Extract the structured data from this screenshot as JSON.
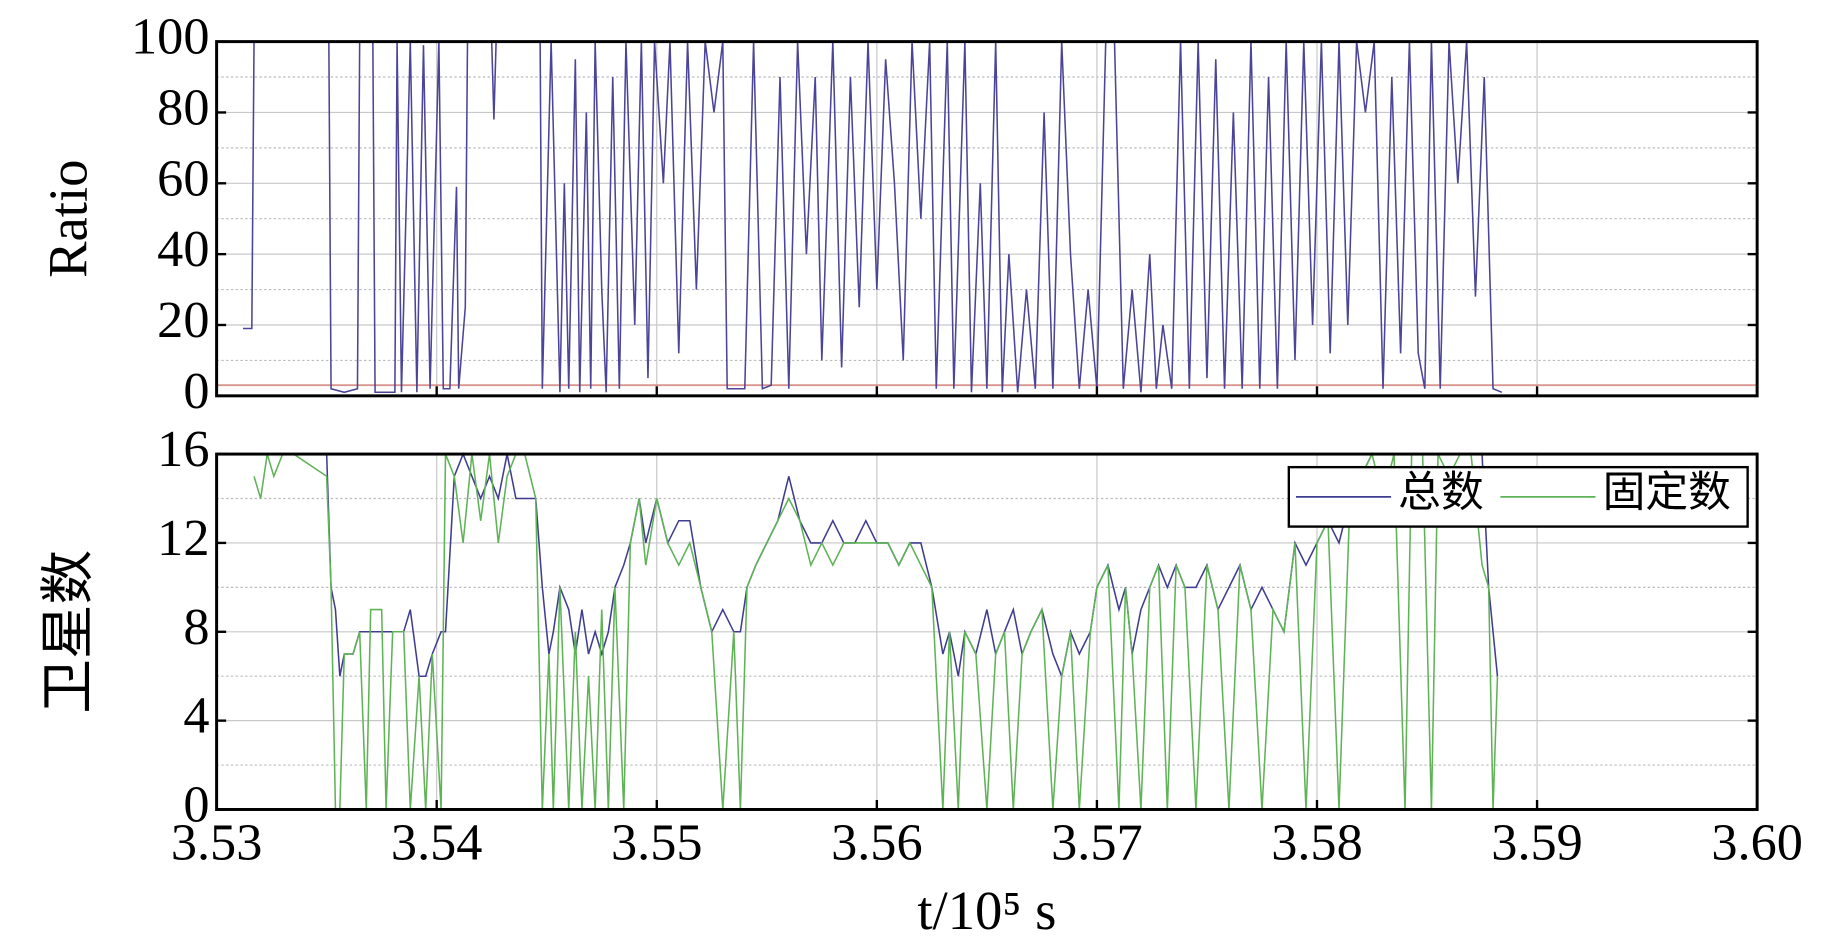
{
  "chart_data": [
    {
      "type": "line",
      "ylabel": "Ratio",
      "xlim": [
        3.53,
        3.6
      ],
      "xticks": [
        3.53,
        3.54,
        3.55,
        3.56,
        3.57,
        3.58,
        3.59,
        3.6
      ],
      "xtick_labels": false,
      "ylim": [
        0,
        100
      ],
      "yticks": [
        0,
        20,
        40,
        60,
        80,
        100
      ],
      "minor_yticks": [
        10,
        30,
        50,
        70,
        90
      ],
      "grid": true,
      "reference_line": {
        "value": 3,
        "color": "#d9958f"
      },
      "x": [
        3.5312,
        3.5316,
        3.5317,
        3.5351,
        3.5352,
        3.5358,
        3.5364,
        3.5365,
        3.5371,
        3.5372,
        3.5381,
        3.5382,
        3.5384,
        3.5388,
        3.5391,
        3.5394,
        3.5397,
        3.5401,
        3.5403,
        3.5406,
        3.5409,
        3.541,
        3.5413,
        3.5414,
        3.5425,
        3.5426,
        3.5427,
        3.5447,
        3.5448,
        3.5452,
        3.5456,
        3.5458,
        3.546,
        3.5463,
        3.5465,
        3.5468,
        3.547,
        3.5472,
        3.5475,
        3.5477,
        3.548,
        3.5483,
        3.5486,
        3.549,
        3.5493,
        3.5496,
        3.5499,
        3.5503,
        3.5506,
        3.551,
        3.5514,
        3.5518,
        3.5522,
        3.5526,
        3.553,
        3.5532,
        3.554,
        3.5544,
        3.5548,
        3.5552,
        3.5556,
        3.556,
        3.5564,
        3.5568,
        3.5572,
        3.5575,
        3.558,
        3.5584,
        3.5588,
        3.5592,
        3.5596,
        3.56,
        3.5604,
        3.5608,
        3.5612,
        3.5616,
        3.562,
        3.5624,
        3.5627,
        3.5632,
        3.5635,
        3.564,
        3.5643,
        3.5647,
        3.565,
        3.5654,
        3.5657,
        3.566,
        3.5664,
        3.5668,
        3.5672,
        3.5676,
        3.568,
        3.5684,
        3.5688,
        3.5692,
        3.5696,
        3.57,
        3.5704,
        3.5708,
        3.5712,
        3.5716,
        3.572,
        3.5724,
        3.5727,
        3.573,
        3.5734,
        3.5738,
        3.5742,
        3.5746,
        3.575,
        3.5754,
        3.5758,
        3.5762,
        3.5766,
        3.577,
        3.5774,
        3.5778,
        3.5782,
        3.5786,
        3.579,
        3.5794,
        3.5798,
        3.5802,
        3.5806,
        3.581,
        3.5814,
        3.5818,
        3.5822,
        3.5826,
        3.583,
        3.5834,
        3.5838,
        3.5842,
        3.5846,
        3.5849,
        3.5852,
        3.5856,
        3.586,
        3.5864,
        3.5868,
        3.5872,
        3.5876,
        3.588,
        3.5884
      ],
      "series": [
        {
          "color": "#4b4498",
          "values": [
            19,
            19,
            100,
            100,
            2,
            1,
            2,
            100,
            100,
            1,
            1,
            100,
            1,
            100,
            1,
            99,
            2,
            100,
            2,
            2,
            59,
            2,
            25,
            100,
            100,
            78,
            100,
            100,
            2,
            100,
            1,
            60,
            2,
            95,
            1,
            80,
            2,
            100,
            30,
            1,
            90,
            2,
            100,
            20,
            100,
            5,
            100,
            60,
            100,
            12,
            100,
            30,
            100,
            80,
            100,
            2,
            2,
            100,
            2,
            3,
            90,
            2,
            100,
            40,
            90,
            10,
            100,
            8,
            90,
            25,
            100,
            30,
            95,
            60,
            10,
            100,
            50,
            100,
            2,
            100,
            2,
            100,
            1,
            60,
            2,
            100,
            1,
            40,
            1,
            30,
            2,
            80,
            2,
            100,
            40,
            2,
            30,
            2,
            100,
            100,
            2,
            30,
            1,
            40,
            2,
            20,
            2,
            100,
            2,
            100,
            5,
            95,
            2,
            80,
            2,
            100,
            2,
            90,
            2,
            100,
            10,
            100,
            20,
            100,
            12,
            100,
            20,
            100,
            80,
            100,
            2,
            90,
            12,
            100,
            12,
            2,
            100,
            2,
            100,
            60,
            100,
            28,
            90,
            2,
            1
          ]
        }
      ]
    },
    {
      "type": "line",
      "ylabel": "卫星数",
      "xlabel": "t/10⁵ s",
      "legend": "upper right",
      "xlim": [
        3.53,
        3.6
      ],
      "xticks": [
        3.53,
        3.54,
        3.55,
        3.56,
        3.57,
        3.58,
        3.59,
        {
          "value": 3.6,
          "label": "3.60"
        }
      ],
      "xtick_labels": true,
      "ylim": [
        0,
        16
      ],
      "yticks": [
        0,
        4,
        8,
        12,
        16
      ],
      "minor_yticks": [
        2,
        6,
        10,
        14
      ],
      "grid": true,
      "x": [
        3.5317,
        3.532,
        3.5323,
        3.5326,
        3.533,
        3.5335,
        3.535,
        3.5352,
        3.5354,
        3.5356,
        3.5358,
        3.5362,
        3.5365,
        3.5368,
        3.537,
        3.5375,
        3.5377,
        3.538,
        3.5385,
        3.5388,
        3.5392,
        3.5395,
        3.5398,
        3.5402,
        3.5404,
        3.5408,
        3.5412,
        3.5416,
        3.542,
        3.5424,
        3.5428,
        3.5432,
        3.5436,
        3.544,
        3.5445,
        3.5448,
        3.5451,
        3.5453,
        3.5456,
        3.546,
        3.5463,
        3.5466,
        3.5469,
        3.5472,
        3.5475,
        3.5478,
        3.5481,
        3.5485,
        3.5488,
        3.5492,
        3.5495,
        3.55,
        3.5505,
        3.551,
        3.5515,
        3.552,
        3.5525,
        3.553,
        3.5535,
        3.5538,
        3.5541,
        3.5545,
        3.555,
        3.5555,
        3.556,
        3.5565,
        3.557,
        3.5575,
        3.558,
        3.5585,
        3.559,
        3.5595,
        3.56,
        3.5605,
        3.561,
        3.5615,
        3.562,
        3.5625,
        3.563,
        3.5633,
        3.5637,
        3.564,
        3.5645,
        3.565,
        3.5654,
        3.5658,
        3.5662,
        3.5666,
        3.567,
        3.5675,
        3.568,
        3.5684,
        3.5688,
        3.5692,
        3.5697,
        3.57,
        3.5705,
        3.571,
        3.5713,
        3.5716,
        3.572,
        3.5724,
        3.5728,
        3.5732,
        3.5736,
        3.574,
        3.5745,
        3.575,
        3.5755,
        3.576,
        3.5765,
        3.577,
        3.5775,
        3.578,
        3.5785,
        3.579,
        3.5795,
        3.58,
        3.5805,
        3.581,
        3.5815,
        3.582,
        3.5825,
        3.583,
        3.5835,
        3.584,
        3.5843,
        3.5848,
        3.5852,
        3.5855,
        3.586,
        3.5865,
        3.587,
        3.5875,
        3.5878,
        3.588,
        3.5882
      ],
      "series": [
        {
          "name": "总数",
          "color": "#3f3d8f",
          "values": [
            16,
            16,
            16,
            16,
            16,
            16,
            16,
            10,
            9,
            6,
            7,
            7,
            8,
            8,
            8,
            8,
            8,
            8,
            8,
            9,
            6,
            6,
            7,
            8,
            8,
            15,
            16,
            15,
            14,
            15,
            14,
            16,
            14,
            14,
            14,
            10,
            7,
            8,
            10,
            9,
            7,
            9,
            7,
            8,
            7,
            8,
            10,
            11,
            12,
            14,
            12,
            14,
            12,
            13,
            13,
            10,
            8,
            9,
            8,
            8,
            10,
            11,
            12,
            13,
            15,
            13,
            12,
            12,
            13,
            12,
            12,
            13,
            12,
            12,
            11,
            12,
            12,
            10,
            7,
            8,
            6,
            8,
            7,
            9,
            7,
            8,
            9,
            7,
            8,
            9,
            7,
            6,
            8,
            7,
            8,
            10,
            11,
            9,
            10,
            7,
            9,
            10,
            11,
            10,
            11,
            10,
            10,
            11,
            9,
            10,
            11,
            9,
            10,
            9,
            8,
            12,
            11,
            12,
            13,
            12,
            14,
            15,
            16,
            16,
            16,
            16,
            16,
            16,
            16,
            16,
            16,
            16,
            16,
            16,
            10,
            8,
            6
          ]
        },
        {
          "name": "固定数",
          "color": "#5fb356",
          "values": [
            15,
            14,
            16,
            15,
            16,
            16,
            15,
            10,
            0,
            0,
            7,
            7,
            8,
            0,
            9,
            9,
            0,
            8,
            8,
            0,
            6,
            0,
            7,
            0,
            16,
            15,
            12,
            16,
            13,
            16,
            12,
            15,
            16,
            16,
            14,
            0,
            7,
            0,
            10,
            0,
            8,
            0,
            6,
            0,
            9,
            0,
            10,
            0,
            12,
            14,
            11,
            14,
            12,
            11,
            12,
            10,
            8,
            0,
            8,
            0,
            10,
            11,
            12,
            13,
            14,
            13,
            11,
            12,
            11,
            12,
            12,
            12,
            12,
            12,
            11,
            12,
            11,
            10,
            0,
            8,
            0,
            8,
            7,
            0,
            7,
            8,
            0,
            7,
            8,
            9,
            0,
            6,
            8,
            0,
            8,
            10,
            11,
            0,
            10,
            7,
            0,
            10,
            11,
            0,
            11,
            10,
            0,
            11,
            9,
            0,
            11,
            9,
            0,
            9,
            8,
            12,
            0,
            12,
            13,
            0,
            14,
            15,
            16,
            14,
            16,
            0,
            16,
            16,
            0,
            16,
            15,
            16,
            16,
            11,
            10,
            0,
            6
          ]
        }
      ]
    }
  ]
}
